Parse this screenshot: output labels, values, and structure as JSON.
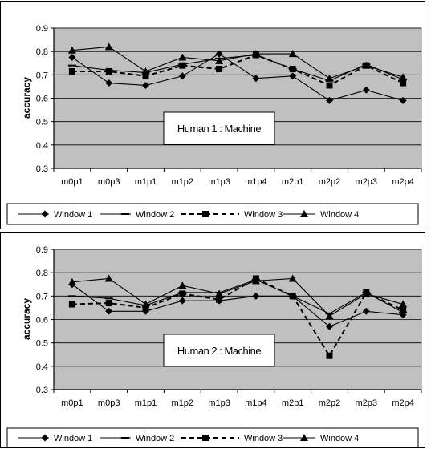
{
  "style": {
    "plot_background": "#c0c0c0",
    "line_color": "#000000",
    "annotation_background": "#ffffff"
  },
  "chart_data": [
    {
      "type": "line",
      "annotation": "Human 1 : Machine",
      "ylabel": "accuracy",
      "xlabel": "",
      "ylim": [
        0.3,
        0.9
      ],
      "yticks": [
        "0.3",
        "0.4",
        "0.5",
        "0.6",
        "0.7",
        "0.8",
        "0.9"
      ],
      "grid": "horizontal",
      "legend_position": "bottom",
      "categories": [
        "m0p1",
        "m0p3",
        "m1p1",
        "m1p2",
        "m1p3",
        "m1p4",
        "m2p1",
        "m2p2",
        "m2p3",
        "m2p4"
      ],
      "series": [
        {
          "name": "Window 1",
          "marker": "diamond",
          "dash": "solid",
          "values": [
            0.775,
            0.665,
            0.655,
            0.695,
            0.79,
            0.685,
            0.695,
            0.59,
            0.635,
            0.59
          ]
        },
        {
          "name": "Window 2",
          "marker": "dash",
          "dash": "solid",
          "values": [
            0.74,
            0.72,
            0.71,
            0.745,
            0.77,
            0.785,
            0.725,
            0.675,
            0.745,
            0.68
          ]
        },
        {
          "name": "Window 3",
          "marker": "square",
          "dash": "dashed",
          "values": [
            0.715,
            0.715,
            0.695,
            0.74,
            0.725,
            0.785,
            0.725,
            0.655,
            0.74,
            0.665
          ]
        },
        {
          "name": "Window 4",
          "marker": "triangle",
          "dash": "solid",
          "values": [
            0.805,
            0.82,
            0.715,
            0.775,
            0.76,
            0.79,
            0.79,
            0.685,
            0.74,
            0.69
          ]
        }
      ]
    },
    {
      "type": "line",
      "annotation": "Human 2 : Machine",
      "ylabel": "accuracy",
      "xlabel": "",
      "ylim": [
        0.3,
        0.9
      ],
      "yticks": [
        "0.3",
        "0.4",
        "0.5",
        "0.6",
        "0.7",
        "0.8",
        "0.9"
      ],
      "grid": "horizontal",
      "legend_position": "bottom",
      "categories": [
        "m0p1",
        "m0p3",
        "m1p1",
        "m1p2",
        "m1p3",
        "m1p4",
        "m2p1",
        "m2p2",
        "m2p3",
        "m2p4"
      ],
      "series": [
        {
          "name": "Window 1",
          "marker": "diamond",
          "dash": "solid",
          "values": [
            0.75,
            0.635,
            0.635,
            0.68,
            0.68,
            0.7,
            0.7,
            0.57,
            0.635,
            0.62
          ]
        },
        {
          "name": "Window 2",
          "marker": "dash",
          "dash": "solid",
          "values": [
            0.7,
            0.69,
            0.66,
            0.715,
            0.715,
            0.77,
            0.7,
            0.625,
            0.715,
            0.63
          ]
        },
        {
          "name": "Window 3",
          "marker": "square",
          "dash": "dashed",
          "values": [
            0.665,
            0.67,
            0.65,
            0.71,
            0.685,
            0.775,
            0.7,
            0.445,
            0.715,
            0.64
          ]
        },
        {
          "name": "Window 4",
          "marker": "triangle",
          "dash": "solid",
          "values": [
            0.76,
            0.775,
            0.665,
            0.745,
            0.71,
            0.765,
            0.775,
            0.615,
            0.71,
            0.665
          ]
        }
      ]
    }
  ]
}
